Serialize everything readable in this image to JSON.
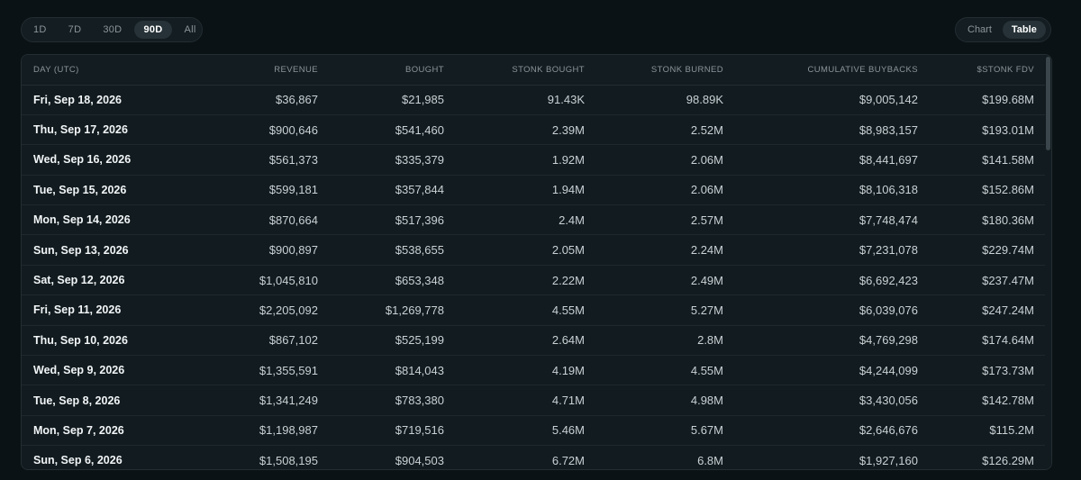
{
  "range_tabs": [
    {
      "label": "1D"
    },
    {
      "label": "7D"
    },
    {
      "label": "30D"
    },
    {
      "label": "90D",
      "active": true
    },
    {
      "label": "All"
    }
  ],
  "view_tabs": [
    {
      "label": "Chart"
    },
    {
      "label": "Table",
      "active": true
    }
  ],
  "table": {
    "headers": [
      "DAY (UTC)",
      "REVENUE",
      "BOUGHT",
      "STONK BOUGHT",
      "STONK BURNED",
      "CUMULATIVE BUYBACKS",
      "$STONK FDV"
    ],
    "rows": [
      [
        "Fri, Sep 18, 2026",
        "$36,867",
        "$21,985",
        "91.43K",
        "98.89K",
        "$9,005,142",
        "$199.68M"
      ],
      [
        "Thu, Sep 17, 2026",
        "$900,646",
        "$541,460",
        "2.39M",
        "2.52M",
        "$8,983,157",
        "$193.01M"
      ],
      [
        "Wed, Sep 16, 2026",
        "$561,373",
        "$335,379",
        "1.92M",
        "2.06M",
        "$8,441,697",
        "$141.58M"
      ],
      [
        "Tue, Sep 15, 2026",
        "$599,181",
        "$357,844",
        "1.94M",
        "2.06M",
        "$8,106,318",
        "$152.86M"
      ],
      [
        "Mon, Sep 14, 2026",
        "$870,664",
        "$517,396",
        "2.4M",
        "2.57M",
        "$7,748,474",
        "$180.36M"
      ],
      [
        "Sun, Sep 13, 2026",
        "$900,897",
        "$538,655",
        "2.05M",
        "2.24M",
        "$7,231,078",
        "$229.74M"
      ],
      [
        "Sat, Sep 12, 2026",
        "$1,045,810",
        "$653,348",
        "2.22M",
        "2.49M",
        "$6,692,423",
        "$237.47M"
      ],
      [
        "Fri, Sep 11, 2026",
        "$2,205,092",
        "$1,269,778",
        "4.55M",
        "5.27M",
        "$6,039,076",
        "$247.24M"
      ],
      [
        "Thu, Sep 10, 2026",
        "$867,102",
        "$525,199",
        "2.64M",
        "2.8M",
        "$4,769,298",
        "$174.64M"
      ],
      [
        "Wed, Sep 9, 2026",
        "$1,355,591",
        "$814,043",
        "4.19M",
        "4.55M",
        "$4,244,099",
        "$173.73M"
      ],
      [
        "Tue, Sep 8, 2026",
        "$1,341,249",
        "$783,380",
        "4.71M",
        "4.98M",
        "$3,430,056",
        "$142.78M"
      ],
      [
        "Mon, Sep 7, 2026",
        "$1,198,987",
        "$719,516",
        "5.46M",
        "5.67M",
        "$2,646,676",
        "$115.2M"
      ],
      [
        "Sun, Sep 6, 2026",
        "$1,508,195",
        "$904,503",
        "6.72M",
        "6.8M",
        "$1,927,160",
        "$126.29M"
      ]
    ]
  }
}
